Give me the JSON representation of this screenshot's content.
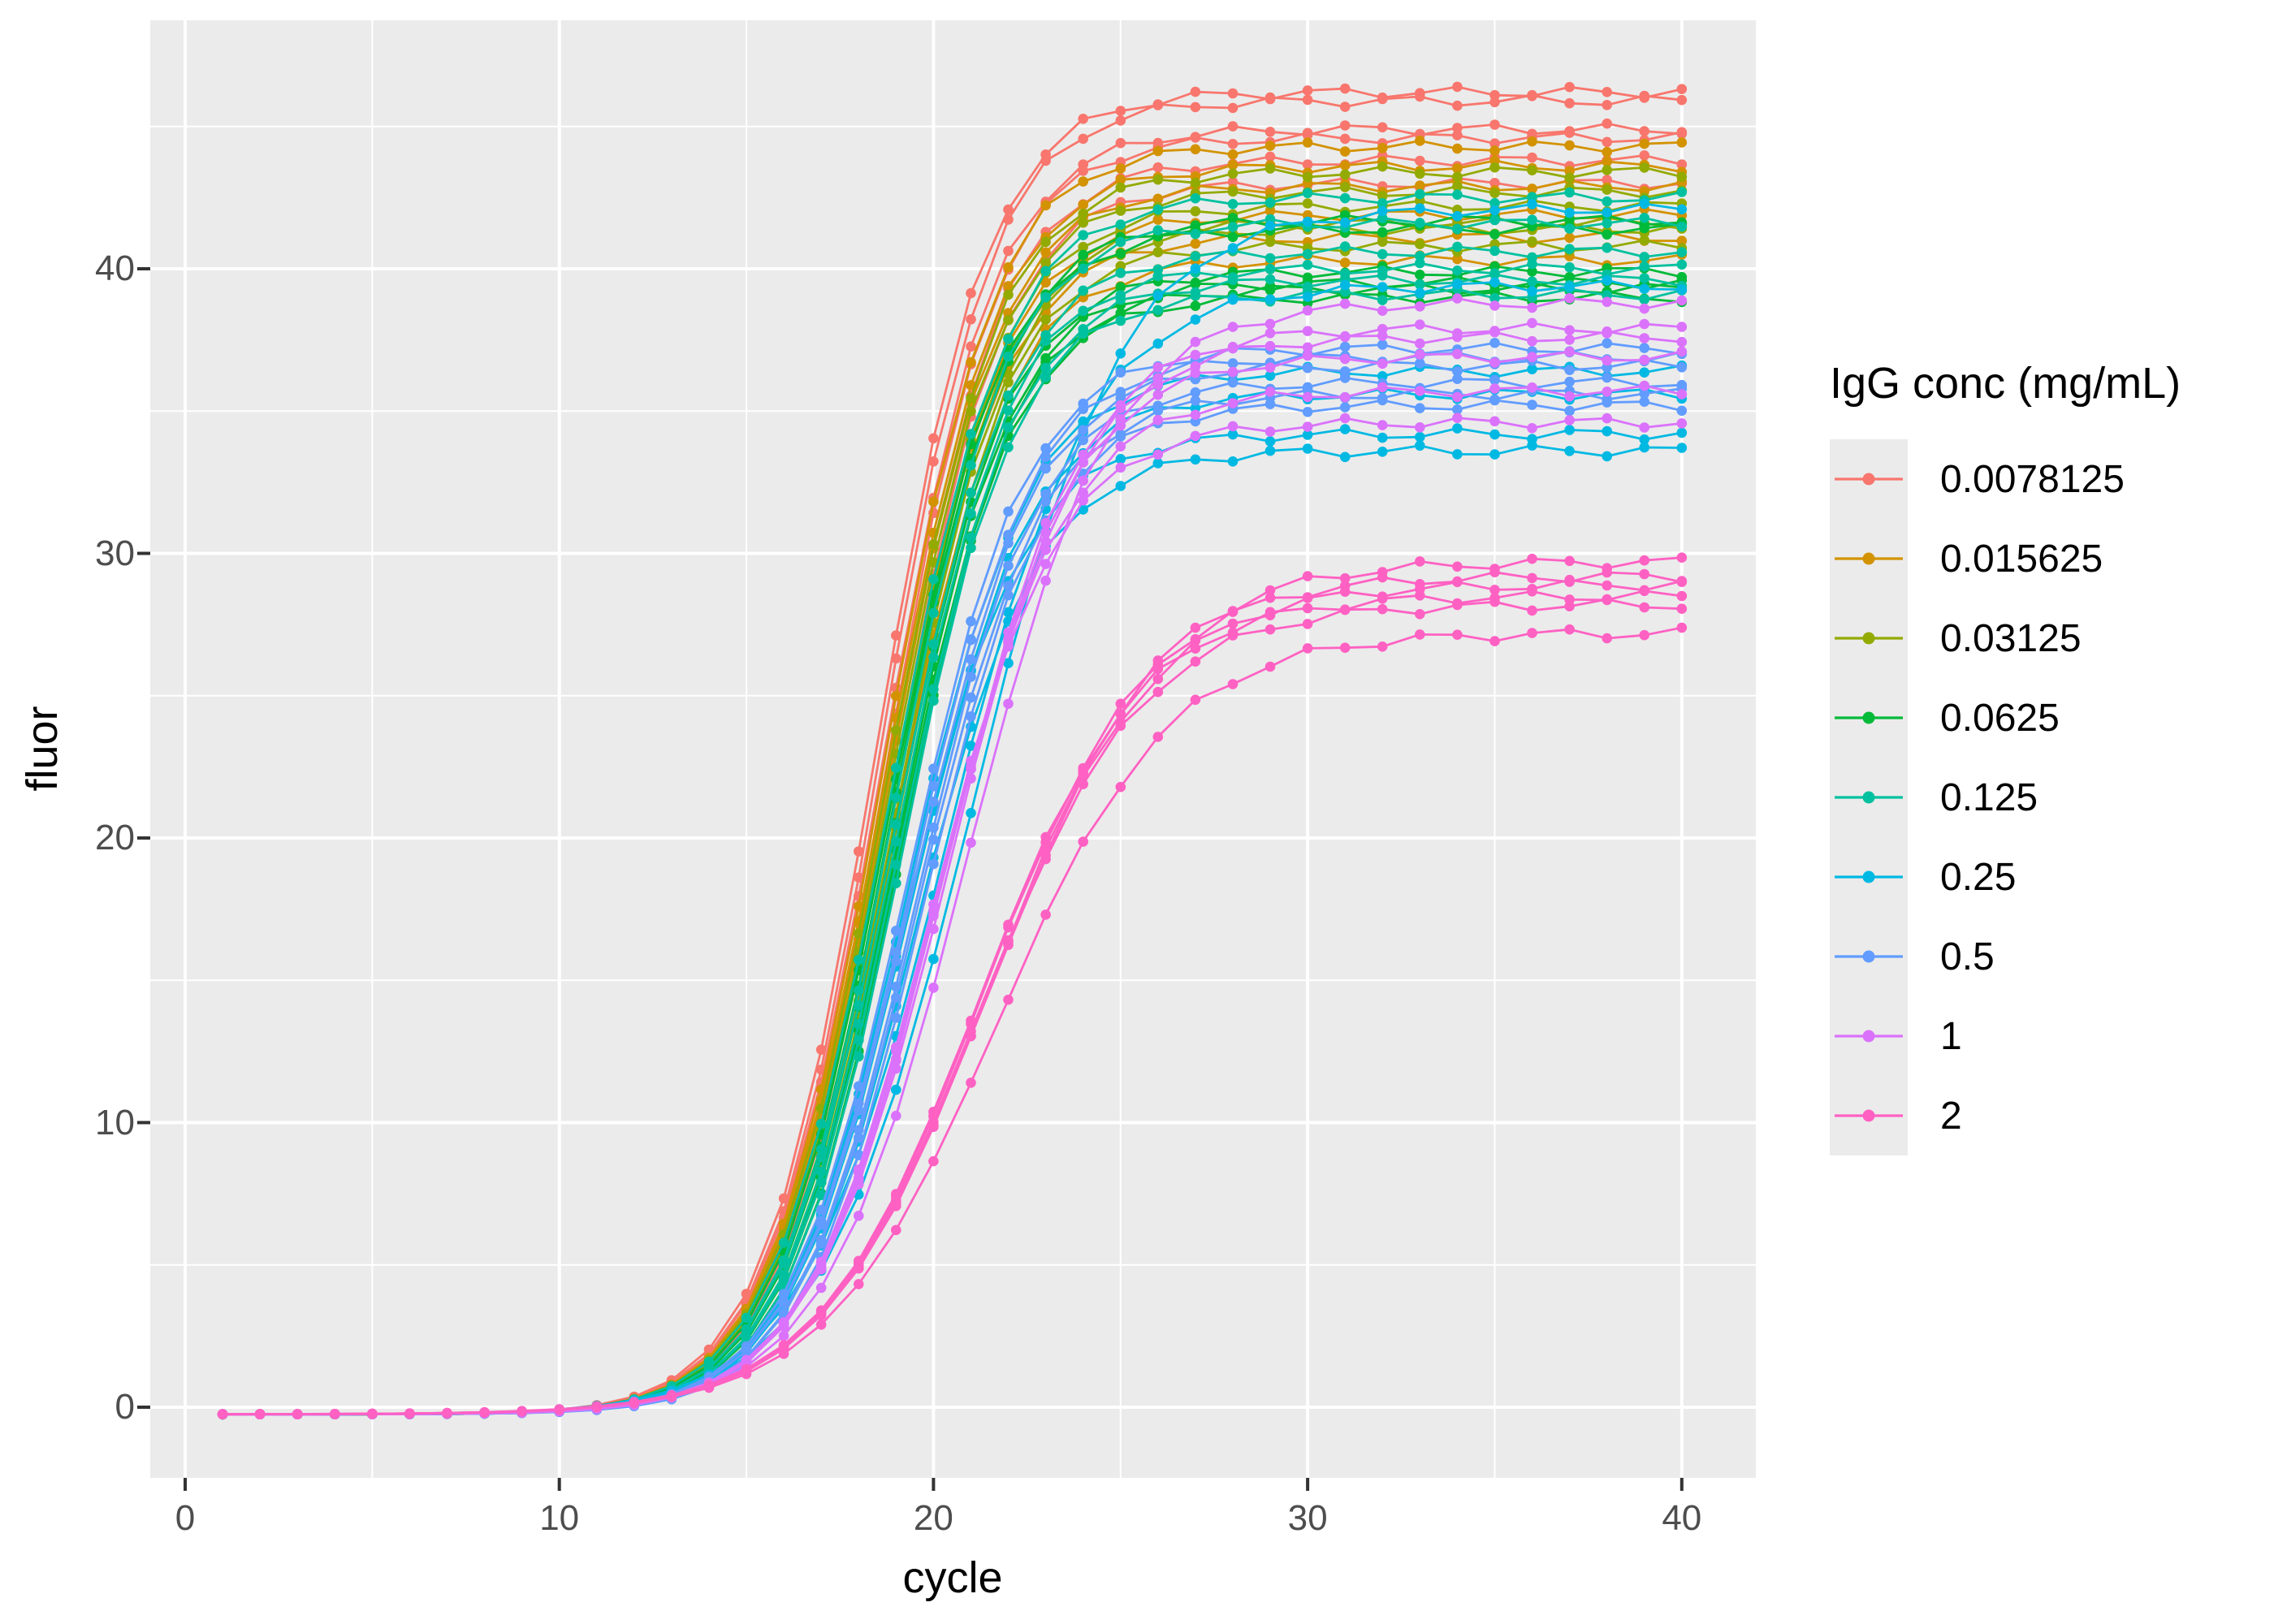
{
  "figure": {
    "kind": "ggplot2-style scatter-line plot",
    "panel_background": "#ebebeb",
    "gridline_color": "#ffffff",
    "tick_mark_color": "#333333",
    "axis_text_color": "#4d4d4d"
  },
  "axes": {
    "x": {
      "title": "cycle",
      "tick_labels": [
        "0",
        "10",
        "20",
        "30",
        "40"
      ]
    },
    "y": {
      "title": "fluor",
      "tick_labels": [
        "0",
        "10",
        "20",
        "30",
        "40"
      ]
    }
  },
  "legend": {
    "title": "IgG conc (mg/mL)",
    "items": [
      {
        "label": "0.0078125",
        "color": "#F8766D"
      },
      {
        "label": "0.015625",
        "color": "#D39200"
      },
      {
        "label": "0.03125",
        "color": "#93AA00"
      },
      {
        "label": "0.0625",
        "color": "#00BA38"
      },
      {
        "label": "0.125",
        "color": "#00C19F"
      },
      {
        "label": "0.25",
        "color": "#00B9E3"
      },
      {
        "label": "0.5",
        "color": "#619CFF"
      },
      {
        "label": "1",
        "color": "#DB72FB"
      },
      {
        "label": "2",
        "color": "#FF61C3"
      }
    ]
  },
  "chart_data": {
    "type": "line",
    "title": "",
    "xlabel": "cycle",
    "ylabel": "fluor",
    "x_ticks": [
      0,
      10,
      20,
      30,
      40
    ],
    "y_ticks": [
      0,
      10,
      20,
      30,
      40
    ],
    "x_minor_ticks": [
      5,
      15,
      25,
      35
    ],
    "y_minor_ticks": [
      5,
      15,
      25,
      35,
      45
    ],
    "xlim": [
      -0.95,
      41.95
    ],
    "ylim": [
      -2.5,
      48.7
    ],
    "grid": "white major+minor on grey panel",
    "legend_position": "right",
    "points": "dot at every integer cycle 1..40 on every curve",
    "cycle_start": 1,
    "cycle_end": 40,
    "baseline": -0.25,
    "model": "y(cycle) = baseline + (plateau - baseline) / (1 + exp(-(cycle - midpoint)/slope))",
    "replicate_format": [
      "plateau",
      "midpoint",
      "slope"
    ],
    "series": [
      {
        "conc": "0.0078125",
        "color": "#F8766D",
        "replicates": [
          [
            46.2,
            18.45,
            1.5
          ],
          [
            45.9,
            18.55,
            1.5
          ],
          [
            44.9,
            18.6,
            1.52
          ],
          [
            44.6,
            18.7,
            1.5
          ],
          [
            43.8,
            18.75,
            1.52
          ],
          [
            43.0,
            18.85,
            1.5
          ]
        ]
      },
      {
        "conc": "0.015625",
        "color": "#D39200",
        "replicates": [
          [
            44.3,
            18.6,
            1.5
          ],
          [
            43.6,
            18.65,
            1.52
          ],
          [
            42.9,
            18.7,
            1.5
          ],
          [
            41.9,
            18.8,
            1.52
          ],
          [
            41.1,
            18.85,
            1.5
          ],
          [
            40.3,
            18.9,
            1.52
          ]
        ]
      },
      {
        "conc": "0.03125",
        "color": "#93AA00",
        "replicates": [
          [
            43.4,
            18.7,
            1.52
          ],
          [
            42.7,
            18.75,
            1.5
          ],
          [
            42.2,
            18.8,
            1.52
          ],
          [
            41.6,
            18.9,
            1.5
          ],
          [
            41.4,
            18.95,
            1.52
          ],
          [
            40.8,
            19.0,
            1.5
          ]
        ]
      },
      {
        "conc": "0.0625",
        "color": "#00BA38",
        "replicates": [
          [
            41.7,
            18.8,
            1.52
          ],
          [
            41.4,
            18.85,
            1.5
          ],
          [
            39.9,
            18.9,
            1.52
          ],
          [
            39.5,
            19.0,
            1.5
          ],
          [
            39.3,
            19.05,
            1.52
          ],
          [
            39.0,
            19.1,
            1.5
          ]
        ]
      },
      {
        "conc": "0.125",
        "color": "#00C19F",
        "replicates": [
          [
            42.5,
            18.8,
            1.55
          ],
          [
            41.6,
            18.9,
            1.52
          ],
          [
            40.6,
            18.95,
            1.55
          ],
          [
            40.0,
            19.0,
            1.52
          ],
          [
            39.6,
            19.1,
            1.55
          ],
          [
            39.1,
            19.15,
            1.52
          ]
        ]
      },
      {
        "conc": "0.25",
        "color": "#00B9E3",
        "replicates": [
          [
            42.1,
            21.0,
            2.0
          ],
          [
            39.4,
            20.3,
            1.9
          ],
          [
            36.4,
            19.3,
            1.6
          ],
          [
            35.6,
            19.4,
            1.6
          ],
          [
            34.2,
            19.2,
            1.6
          ],
          [
            33.6,
            19.5,
            1.62
          ]
        ]
      },
      {
        "conc": "0.5",
        "color": "#619CFF",
        "replicates": [
          [
            37.2,
            19.3,
            1.6
          ],
          [
            36.9,
            19.4,
            1.6
          ],
          [
            36.6,
            19.45,
            1.62
          ],
          [
            36.0,
            19.55,
            1.6
          ],
          [
            35.6,
            19.6,
            1.62
          ],
          [
            35.2,
            19.7,
            1.6
          ]
        ]
      },
      {
        "conc": "1",
        "color": "#DB72FB",
        "replicates": [
          [
            38.8,
            20.9,
            1.9
          ],
          [
            37.9,
            20.3,
            1.8
          ],
          [
            37.6,
            20.35,
            1.8
          ],
          [
            36.9,
            20.2,
            1.75
          ],
          [
            35.7,
            20.05,
            1.75
          ],
          [
            34.6,
            19.9,
            1.7
          ]
        ]
      },
      {
        "conc": "2",
        "color": "#FF61C3",
        "replicates": [
          [
            29.7,
            21.5,
            2.25
          ],
          [
            29.2,
            21.3,
            2.2
          ],
          [
            28.9,
            21.4,
            2.2
          ],
          [
            28.5,
            21.15,
            2.15
          ],
          [
            28.2,
            21.25,
            2.2
          ],
          [
            27.2,
            21.7,
            2.3
          ]
        ]
      }
    ]
  }
}
